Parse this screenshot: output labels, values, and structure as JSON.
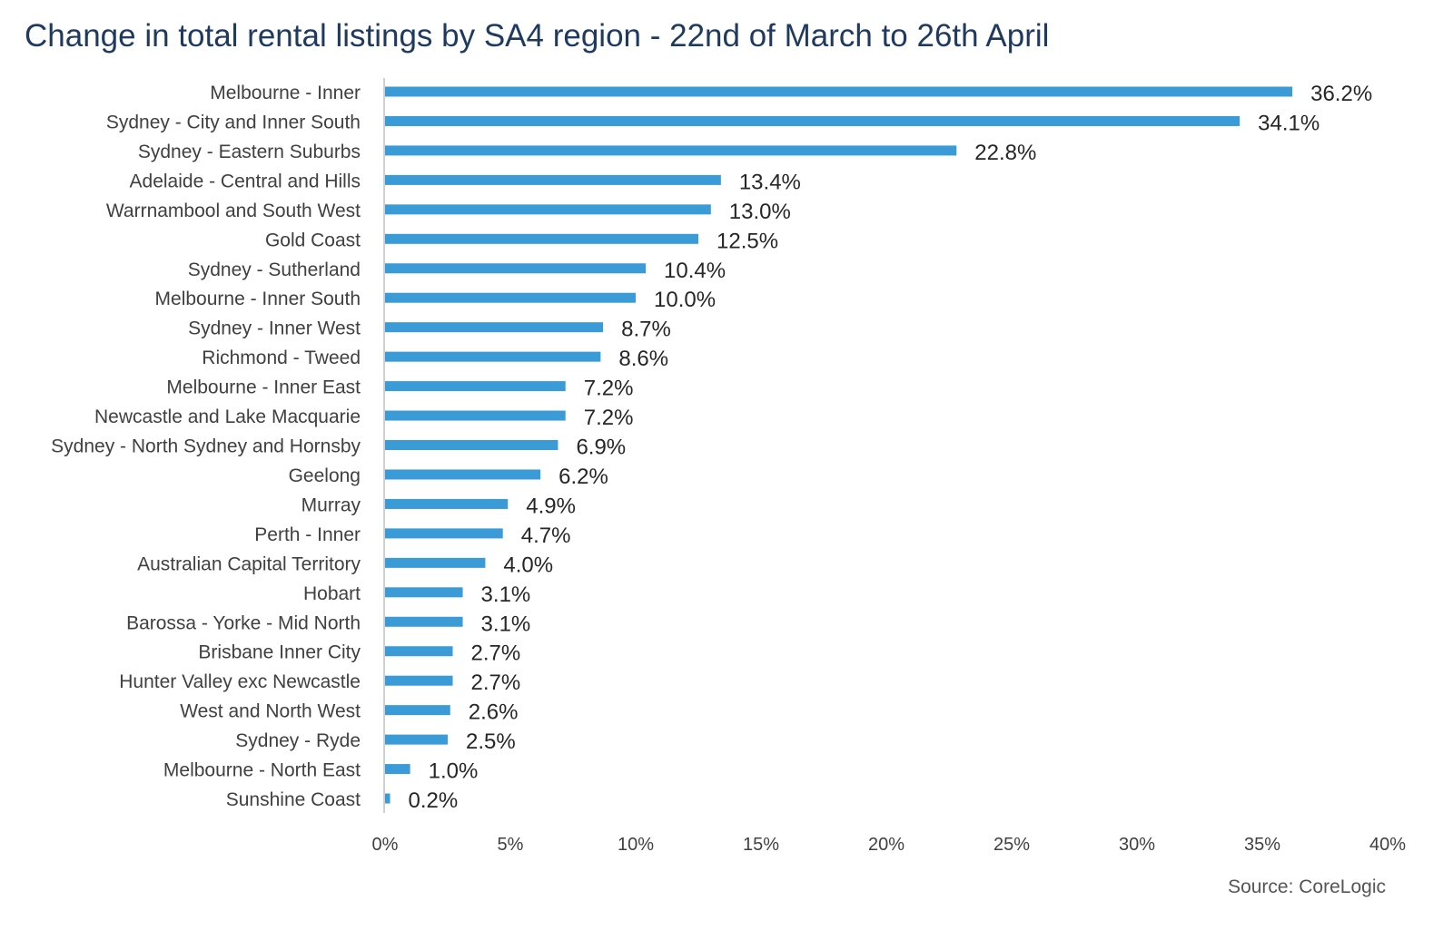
{
  "chart_data": {
    "type": "bar",
    "orientation": "horizontal",
    "title": "Change in total rental listings by SA4 region - 22nd of March to 26th April",
    "source": "Source: CoreLogic",
    "categories": [
      "Melbourne - Inner",
      "Sydney - City and Inner South",
      "Sydney - Eastern Suburbs",
      "Adelaide - Central and Hills",
      "Warrnambool and South West",
      "Gold Coast",
      "Sydney - Sutherland",
      "Melbourne - Inner South",
      "Sydney - Inner West",
      "Richmond - Tweed",
      "Melbourne - Inner East",
      "Newcastle and Lake Macquarie",
      "Sydney - North Sydney and Hornsby",
      "Geelong",
      "Murray",
      "Perth - Inner",
      "Australian Capital Territory",
      "Hobart",
      "Barossa - Yorke - Mid North",
      "Brisbane Inner City",
      "Hunter Valley exc Newcastle",
      "West and North West",
      "Sydney - Ryde",
      "Melbourne - North East",
      "Sunshine Coast"
    ],
    "values": [
      36.2,
      34.1,
      22.8,
      13.4,
      13.0,
      12.5,
      10.4,
      10.0,
      8.7,
      8.6,
      7.2,
      7.2,
      6.9,
      6.2,
      4.9,
      4.7,
      4.0,
      3.1,
      3.1,
      2.7,
      2.7,
      2.6,
      2.5,
      1.0,
      0.2
    ],
    "data_labels": [
      "36.2%",
      "34.1%",
      "22.8%",
      "13.4%",
      "13.0%",
      "12.5%",
      "10.4%",
      "10.0%",
      "8.7%",
      "8.6%",
      "7.2%",
      "7.2%",
      "6.9%",
      "6.2%",
      "4.9%",
      "4.7%",
      "4.0%",
      "3.1%",
      "3.1%",
      "2.7%",
      "2.7%",
      "2.6%",
      "2.5%",
      "1.0%",
      "0.2%"
    ],
    "xlim": [
      0,
      40
    ],
    "xticks": [
      0,
      5,
      10,
      15,
      20,
      25,
      30,
      35,
      40
    ],
    "xtick_labels": [
      "0%",
      "5%",
      "10%",
      "15%",
      "20%",
      "25%",
      "30%",
      "35%",
      "40%"
    ],
    "xlabel": "",
    "ylabel": "",
    "grid": false,
    "legend": "none",
    "colors": {
      "bar": "#3a9bd6",
      "title": "#1f3a5f",
      "text": "#404040",
      "axis": "#d0d0d0"
    }
  }
}
